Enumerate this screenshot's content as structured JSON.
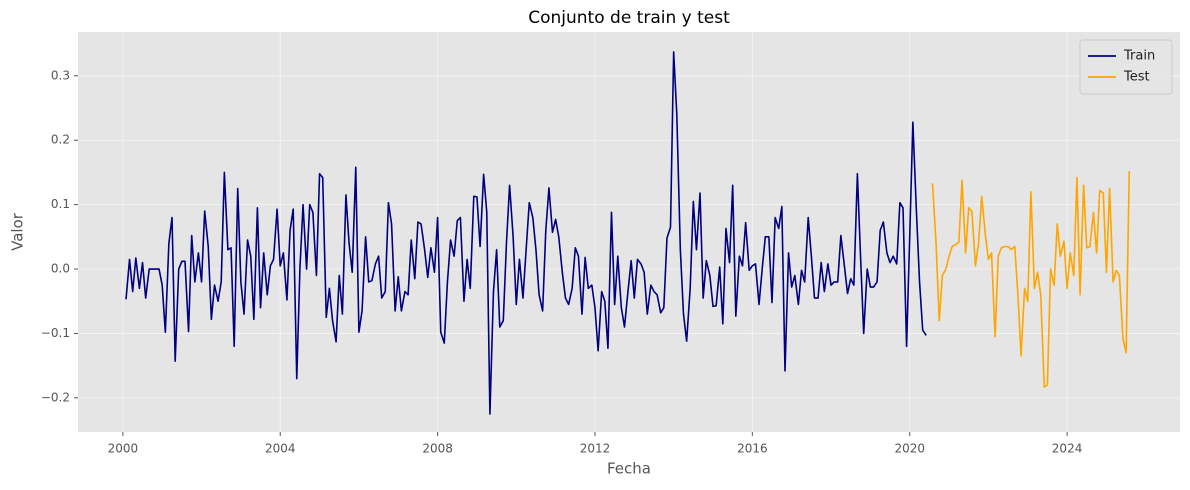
{
  "chart_data": {
    "type": "line",
    "title": "Conjunto de train y test",
    "xlabel": "Fecha",
    "ylabel": "Valor",
    "xlim": [
      1998.86,
      2026.87
    ],
    "xticks": [
      2000,
      2004,
      2008,
      2012,
      2016,
      2020,
      2024
    ],
    "ylim": [
      -0.253,
      0.368
    ],
    "yticks": [
      {
        "value": -0.2,
        "label": "−0.2"
      },
      {
        "value": -0.1,
        "label": "−0.1"
      },
      {
        "value": 0,
        "label": "0.0"
      },
      0.1,
      0.2,
      0.3
    ],
    "grid": true,
    "legend": "upper right",
    "series": [
      {
        "name": "Train",
        "color": "#000080",
        "x": [
          2000.08,
          2000.17,
          2000.25,
          2000.33,
          2000.42,
          2000.5,
          2000.58,
          2000.67,
          2000.75,
          2000.83,
          2000.92,
          2001,
          2001.08,
          2001.17,
          2001.25,
          2001.33,
          2001.42,
          2001.5,
          2001.58,
          2001.67,
          2001.75,
          2001.83,
          2001.92,
          2002,
          2002.08,
          2002.17,
          2002.25,
          2002.33,
          2002.42,
          2002.5,
          2002.58,
          2002.67,
          2002.75,
          2002.83,
          2002.92,
          2003,
          2003.08,
          2003.17,
          2003.25,
          2003.33,
          2003.42,
          2003.5,
          2003.58,
          2003.67,
          2003.75,
          2003.83,
          2003.92,
          2004,
          2004.08,
          2004.17,
          2004.25,
          2004.33,
          2004.42,
          2004.5,
          2004.58,
          2004.67,
          2004.75,
          2004.83,
          2004.92,
          2005,
          2005.08,
          2005.17,
          2005.25,
          2005.33,
          2005.42,
          2005.5,
          2005.58,
          2005.67,
          2005.75,
          2005.83,
          2005.92,
          2006,
          2006.08,
          2006.17,
          2006.25,
          2006.33,
          2006.42,
          2006.5,
          2006.58,
          2006.67,
          2006.75,
          2006.83,
          2006.92,
          2007,
          2007.08,
          2007.17,
          2007.25,
          2007.33,
          2007.42,
          2007.5,
          2007.58,
          2007.67,
          2007.75,
          2007.83,
          2007.92,
          2008,
          2008.08,
          2008.17,
          2008.25,
          2008.33,
          2008.42,
          2008.5,
          2008.58,
          2008.67,
          2008.75,
          2008.83,
          2008.92,
          2009,
          2009.08,
          2009.17,
          2009.25,
          2009.33,
          2009.42,
          2009.5,
          2009.58,
          2009.67,
          2009.75,
          2009.83,
          2009.92,
          2010,
          2010.08,
          2010.17,
          2010.25,
          2010.33,
          2010.42,
          2010.5,
          2010.58,
          2010.67,
          2010.75,
          2010.83,
          2010.92,
          2011,
          2011.08,
          2011.17,
          2011.25,
          2011.33,
          2011.42,
          2011.5,
          2011.58,
          2011.67,
          2011.75,
          2011.83,
          2011.92,
          2012,
          2012.08,
          2012.17,
          2012.25,
          2012.33,
          2012.42,
          2012.5,
          2012.58,
          2012.67,
          2012.75,
          2012.83,
          2012.92,
          2013,
          2013.08,
          2013.17,
          2013.25,
          2013.33,
          2013.42,
          2013.5,
          2013.58,
          2013.67,
          2013.75,
          2013.83,
          2013.92,
          2014,
          2014.08,
          2014.17,
          2014.25,
          2014.33,
          2014.42,
          2014.5,
          2014.58,
          2014.67,
          2014.75,
          2014.83,
          2014.92,
          2015,
          2015.08,
          2015.17,
          2015.25,
          2015.33,
          2015.42,
          2015.5,
          2015.58,
          2015.67,
          2015.75,
          2015.83,
          2015.92,
          2016,
          2016.08,
          2016.17,
          2016.25,
          2016.33,
          2016.42,
          2016.5,
          2016.58,
          2016.67,
          2016.75,
          2016.83,
          2016.92,
          2017,
          2017.08,
          2017.17,
          2017.25,
          2017.33,
          2017.42,
          2017.5,
          2017.58,
          2017.67,
          2017.75,
          2017.83,
          2017.92,
          2018,
          2018.08,
          2018.17,
          2018.25,
          2018.33,
          2018.42,
          2018.5,
          2018.58,
          2018.67,
          2018.75,
          2018.83,
          2018.92,
          2019,
          2019.08,
          2019.17,
          2019.25,
          2019.33,
          2019.42,
          2019.5,
          2019.58,
          2019.67,
          2019.75,
          2019.83,
          2019.92,
          2020,
          2020.08,
          2020.17,
          2020.25,
          2020.33,
          2020.42
        ],
        "values": [
          -0.047,
          0.015,
          -0.035,
          0.017,
          -0.03,
          0.01,
          -0.045,
          0,
          0,
          0,
          0,
          -0.025,
          -0.098,
          0.04,
          0.08,
          -0.143,
          0.0,
          0.012,
          0.012,
          -0.097,
          0.052,
          -0.02,
          0.025,
          -0.02,
          0.09,
          0.035,
          -0.078,
          -0.025,
          -0.05,
          -0.02,
          0.15,
          0.03,
          0.033,
          -0.12,
          0.125,
          -0.02,
          -0.07,
          0.045,
          0.02,
          -0.078,
          0.095,
          -0.06,
          0.025,
          -0.04,
          0.005,
          0.015,
          0.093,
          0.005,
          0.025,
          -0.048,
          0.06,
          0.093,
          -0.17,
          0.0,
          0.1,
          0.0,
          0.1,
          0.088,
          -0.01,
          0.148,
          0.142,
          -0.075,
          -0.03,
          -0.08,
          -0.113,
          -0.01,
          -0.07,
          0.115,
          0.04,
          -0.005,
          0.158,
          -0.098,
          -0.065,
          0.05,
          -0.02,
          -0.018,
          0.008,
          0.02,
          -0.045,
          -0.035,
          0.103,
          0.07,
          -0.065,
          -0.012,
          -0.065,
          -0.035,
          -0.04,
          0.045,
          -0.015,
          0.073,
          0.07,
          0.03,
          -0.013,
          0.033,
          -0.005,
          0.08,
          -0.098,
          -0.115,
          -0.02,
          0.045,
          0.02,
          0.075,
          0.08,
          -0.05,
          0.015,
          -0.03,
          0.113,
          0.112,
          0.035,
          0.147,
          0.088,
          -0.225,
          -0.035,
          0.03,
          -0.09,
          -0.08,
          0.04,
          0.13,
          0.05,
          -0.055,
          0.015,
          -0.045,
          0.03,
          0.103,
          0.08,
          0.03,
          -0.04,
          -0.065,
          0.06,
          0.126,
          0.057,
          0.077,
          0.05,
          -0.005,
          -0.045,
          -0.055,
          -0.03,
          0.033,
          0.02,
          -0.07,
          0.018,
          -0.03,
          -0.025,
          -0.06,
          -0.127,
          -0.035,
          -0.05,
          -0.123,
          0.088,
          -0.055,
          0.02,
          -0.06,
          -0.09,
          -0.04,
          0.013,
          -0.045,
          0.015,
          0.008,
          -0.005,
          -0.07,
          -0.025,
          -0.035,
          -0.04,
          -0.068,
          -0.06,
          0.048,
          0.065,
          0.337,
          0.24,
          0.03,
          -0.07,
          -0.112,
          -0.03,
          0.105,
          0.03,
          0.118,
          -0.045,
          0.013,
          -0.01,
          -0.058,
          -0.057,
          0.003,
          -0.085,
          0.063,
          0.01,
          0.13,
          -0.073,
          0.02,
          0.005,
          0.072,
          -0.002,
          0.005,
          0.008,
          -0.055,
          0.0,
          0.05,
          0.05,
          -0.052,
          0.08,
          0.063,
          0.097,
          -0.158,
          0.025,
          -0.028,
          -0.01,
          -0.055,
          -0.002,
          -0.02,
          0.08,
          0.02,
          -0.045,
          -0.045,
          0.01,
          -0.035,
          0.008,
          -0.025,
          -0.02,
          -0.02,
          0.052,
          0.01,
          -0.038,
          -0.015,
          -0.025,
          0.148,
          0.02,
          -0.1,
          0.0,
          -0.028,
          -0.028,
          -0.02,
          0.06,
          0.073,
          0.025,
          0.01,
          0.02,
          0.008,
          0.103,
          0.095,
          -0.12,
          0.05,
          0.228,
          0.09,
          -0.02,
          -0.095,
          -0.103
        ]
      },
      {
        "name": "Test",
        "color": "#ffa500",
        "x": [
          2020.58,
          2020.67,
          2020.75,
          2020.83,
          2020.92,
          2021,
          2021.08,
          2021.17,
          2021.25,
          2021.33,
          2021.42,
          2021.5,
          2021.58,
          2021.67,
          2021.75,
          2021.83,
          2021.92,
          2022,
          2022.08,
          2022.17,
          2022.25,
          2022.33,
          2022.42,
          2022.5,
          2022.58,
          2022.67,
          2022.75,
          2022.83,
          2022.92,
          2023,
          2023.08,
          2023.17,
          2023.25,
          2023.33,
          2023.42,
          2023.5,
          2023.58,
          2023.67,
          2023.75,
          2023.83,
          2023.92,
          2024,
          2024.08,
          2024.17,
          2024.25,
          2024.33,
          2024.42,
          2024.5,
          2024.58,
          2024.67,
          2024.75,
          2024.83,
          2024.92,
          2025,
          2025.08,
          2025.17,
          2025.25,
          2025.33,
          2025.42,
          2025.5,
          2025.58
        ],
        "values": [
          0.133,
          0.04,
          -0.08,
          -0.01,
          0.0,
          0.02,
          0.035,
          0.038,
          0.042,
          0.138,
          0.025,
          0.095,
          0.09,
          0.005,
          0.04,
          0.113,
          0.055,
          0.015,
          0.025,
          -0.105,
          0.02,
          0.033,
          0.035,
          0.035,
          0.03,
          0.035,
          -0.04,
          -0.135,
          -0.03,
          -0.05,
          0.12,
          -0.03,
          -0.005,
          -0.04,
          -0.183,
          -0.18,
          0,
          -0.025,
          0.07,
          0.02,
          0.043,
          -0.03,
          0.025,
          -0.01,
          0.142,
          -0.04,
          0.13,
          0.033,
          0.035,
          0.088,
          0.025,
          0.122,
          0.118,
          -0.005,
          0.125,
          -0.02,
          -0.002,
          -0.01,
          -0.108,
          -0.13,
          0.152
        ]
      }
    ]
  }
}
